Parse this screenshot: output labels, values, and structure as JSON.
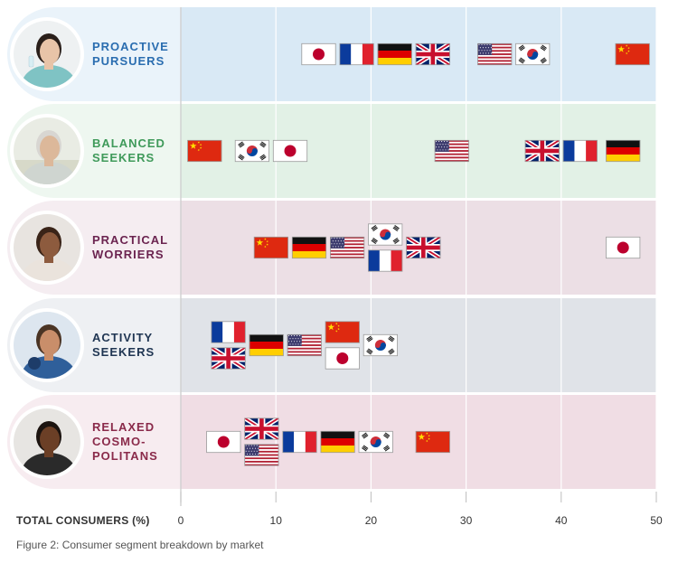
{
  "caption": "Figure 2: Consumer segment breakdown by market",
  "chart_data": {
    "type": "scatter",
    "xlabel": "TOTAL CONSUMERS (%)",
    "xlim": [
      0,
      50
    ],
    "xticks": [
      0,
      10,
      20,
      30,
      40,
      50
    ],
    "grid": true,
    "segments": [
      {
        "name": "PROACTIVE PURSUERS",
        "label_lines": [
          "PROACTIVE",
          "PURSUERS"
        ],
        "label_color": "#2a6db0",
        "row_color": "#d9e9f5",
        "label_bg": "#eaf3fa",
        "points": [
          {
            "market": "Japan",
            "flag": "japan",
            "value": 14.5,
            "stack": 0
          },
          {
            "market": "France",
            "flag": "france",
            "value": 18.5,
            "stack": 0
          },
          {
            "market": "Germany",
            "flag": "germany",
            "value": 22.5,
            "stack": 0
          },
          {
            "market": "UK",
            "flag": "uk",
            "value": 26.5,
            "stack": 0
          },
          {
            "market": "USA",
            "flag": "usa",
            "value": 33.0,
            "stack": 0
          },
          {
            "market": "South Korea",
            "flag": "korea",
            "value": 37.0,
            "stack": 0
          },
          {
            "market": "China",
            "flag": "china",
            "value": 47.5,
            "stack": 0
          }
        ]
      },
      {
        "name": "BALANCED SEEKERS",
        "label_lines": [
          "BALANCED",
          "SEEKERS"
        ],
        "label_color": "#3f9a5a",
        "row_color": "#e2f1e6",
        "label_bg": "#eef7f0",
        "points": [
          {
            "market": "China",
            "flag": "china",
            "value": 2.5,
            "stack": 0
          },
          {
            "market": "South Korea",
            "flag": "korea",
            "value": 7.5,
            "stack": 0
          },
          {
            "market": "Japan",
            "flag": "japan",
            "value": 11.5,
            "stack": 0
          },
          {
            "market": "USA",
            "flag": "usa",
            "value": 28.5,
            "stack": 0
          },
          {
            "market": "UK",
            "flag": "uk",
            "value": 38.0,
            "stack": 0
          },
          {
            "market": "France",
            "flag": "france",
            "value": 42.0,
            "stack": 0
          },
          {
            "market": "Germany",
            "flag": "germany",
            "value": 46.5,
            "stack": 0
          }
        ]
      },
      {
        "name": "PRACTICAL WORRIERS",
        "label_lines": [
          "PRACTICAL",
          "WORRIERS"
        ],
        "label_color": "#6b2450",
        "row_color": "#ecdfe5",
        "label_bg": "#f5edf1",
        "points": [
          {
            "market": "China",
            "flag": "china",
            "value": 9.5,
            "stack": 0
          },
          {
            "market": "Germany",
            "flag": "germany",
            "value": 13.5,
            "stack": 0
          },
          {
            "market": "USA",
            "flag": "usa",
            "value": 17.5,
            "stack": 0
          },
          {
            "market": "South Korea",
            "flag": "korea",
            "value": 21.5,
            "stack": -1
          },
          {
            "market": "France",
            "flag": "france",
            "value": 21.5,
            "stack": 1
          },
          {
            "market": "UK",
            "flag": "uk",
            "value": 25.5,
            "stack": 0
          },
          {
            "market": "Japan",
            "flag": "japan",
            "value": 46.5,
            "stack": 0
          }
        ]
      },
      {
        "name": "ACTIVITY SEEKERS",
        "label_lines": [
          "ACTIVITY",
          "SEEKERS"
        ],
        "label_color": "#1f3552",
        "row_color": "#e0e3e8",
        "label_bg": "#eef0f3",
        "points": [
          {
            "market": "France",
            "flag": "france",
            "value": 5.0,
            "stack": -1
          },
          {
            "market": "UK",
            "flag": "uk",
            "value": 5.0,
            "stack": 1
          },
          {
            "market": "Germany",
            "flag": "germany",
            "value": 9.0,
            "stack": 0
          },
          {
            "market": "USA",
            "flag": "usa",
            "value": 13.0,
            "stack": 0
          },
          {
            "market": "China",
            "flag": "china",
            "value": 17.0,
            "stack": -1
          },
          {
            "market": "Japan",
            "flag": "japan",
            "value": 17.0,
            "stack": 1
          },
          {
            "market": "South Korea",
            "flag": "korea",
            "value": 21.0,
            "stack": 0
          }
        ]
      },
      {
        "name": "RELAXED COSMO-POLITANS",
        "label_lines": [
          "RELAXED",
          "COSMO-",
          "POLITANS"
        ],
        "label_color": "#8a2a4a",
        "row_color": "#f0dde4",
        "label_bg": "#f7ecf0",
        "points": [
          {
            "market": "Japan",
            "flag": "japan",
            "value": 4.5,
            "stack": 0
          },
          {
            "market": "UK",
            "flag": "uk",
            "value": 8.5,
            "stack": -1
          },
          {
            "market": "USA",
            "flag": "usa",
            "value": 8.5,
            "stack": 1
          },
          {
            "market": "France",
            "flag": "france",
            "value": 12.5,
            "stack": 0
          },
          {
            "market": "Germany",
            "flag": "germany",
            "value": 16.5,
            "stack": 0
          },
          {
            "market": "South Korea",
            "flag": "korea",
            "value": 20.5,
            "stack": 0
          },
          {
            "market": "China",
            "flag": "china",
            "value": 26.5,
            "stack": 0
          }
        ]
      }
    ]
  }
}
